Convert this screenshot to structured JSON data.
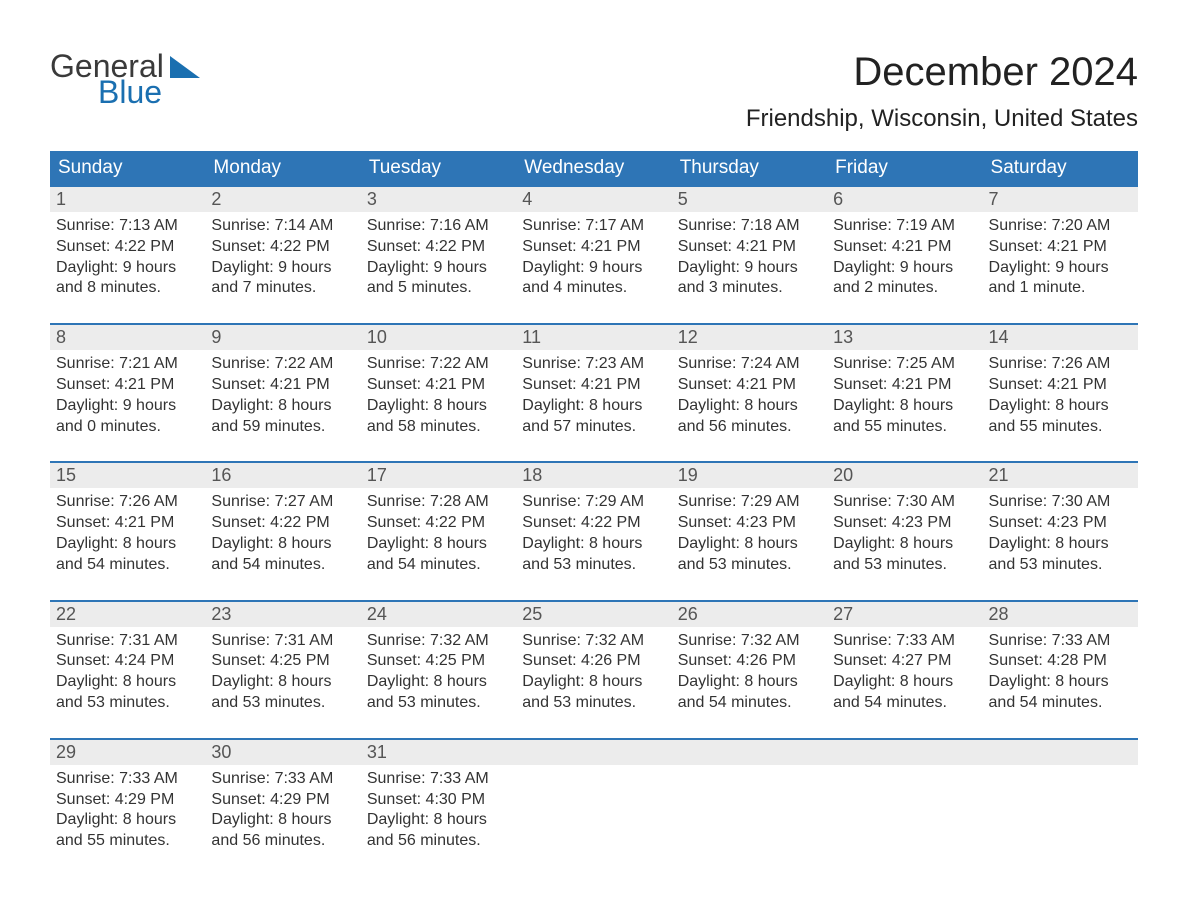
{
  "brand": {
    "word1": "General",
    "word2": "Blue",
    "triangle_color": "#1a6fb0",
    "text1_color": "#3a3a3a",
    "text2_color": "#1a6fb0"
  },
  "title": "December 2024",
  "location": "Friendship, Wisconsin, United States",
  "colors": {
    "header_bg": "#2e75b6",
    "header_text": "#ffffff",
    "week_border": "#2e75b6",
    "daynum_bg": "#ececec",
    "daynum_text": "#555555",
    "body_text": "#333333",
    "page_bg": "#ffffff"
  },
  "fonts": {
    "title_size_pt": 30,
    "location_size_pt": 18,
    "header_size_pt": 14,
    "body_size_pt": 12
  },
  "day_headers": [
    "Sunday",
    "Monday",
    "Tuesday",
    "Wednesday",
    "Thursday",
    "Friday",
    "Saturday"
  ],
  "weeks": [
    [
      {
        "n": "1",
        "sr": "Sunrise: 7:13 AM",
        "ss": "Sunset: 4:22 PM",
        "d1": "Daylight: 9 hours",
        "d2": "and 8 minutes."
      },
      {
        "n": "2",
        "sr": "Sunrise: 7:14 AM",
        "ss": "Sunset: 4:22 PM",
        "d1": "Daylight: 9 hours",
        "d2": "and 7 minutes."
      },
      {
        "n": "3",
        "sr": "Sunrise: 7:16 AM",
        "ss": "Sunset: 4:22 PM",
        "d1": "Daylight: 9 hours",
        "d2": "and 5 minutes."
      },
      {
        "n": "4",
        "sr": "Sunrise: 7:17 AM",
        "ss": "Sunset: 4:21 PM",
        "d1": "Daylight: 9 hours",
        "d2": "and 4 minutes."
      },
      {
        "n": "5",
        "sr": "Sunrise: 7:18 AM",
        "ss": "Sunset: 4:21 PM",
        "d1": "Daylight: 9 hours",
        "d2": "and 3 minutes."
      },
      {
        "n": "6",
        "sr": "Sunrise: 7:19 AM",
        "ss": "Sunset: 4:21 PM",
        "d1": "Daylight: 9 hours",
        "d2": "and 2 minutes."
      },
      {
        "n": "7",
        "sr": "Sunrise: 7:20 AM",
        "ss": "Sunset: 4:21 PM",
        "d1": "Daylight: 9 hours",
        "d2": "and 1 minute."
      }
    ],
    [
      {
        "n": "8",
        "sr": "Sunrise: 7:21 AM",
        "ss": "Sunset: 4:21 PM",
        "d1": "Daylight: 9 hours",
        "d2": "and 0 minutes."
      },
      {
        "n": "9",
        "sr": "Sunrise: 7:22 AM",
        "ss": "Sunset: 4:21 PM",
        "d1": "Daylight: 8 hours",
        "d2": "and 59 minutes."
      },
      {
        "n": "10",
        "sr": "Sunrise: 7:22 AM",
        "ss": "Sunset: 4:21 PM",
        "d1": "Daylight: 8 hours",
        "d2": "and 58 minutes."
      },
      {
        "n": "11",
        "sr": "Sunrise: 7:23 AM",
        "ss": "Sunset: 4:21 PM",
        "d1": "Daylight: 8 hours",
        "d2": "and 57 minutes."
      },
      {
        "n": "12",
        "sr": "Sunrise: 7:24 AM",
        "ss": "Sunset: 4:21 PM",
        "d1": "Daylight: 8 hours",
        "d2": "and 56 minutes."
      },
      {
        "n": "13",
        "sr": "Sunrise: 7:25 AM",
        "ss": "Sunset: 4:21 PM",
        "d1": "Daylight: 8 hours",
        "d2": "and 55 minutes."
      },
      {
        "n": "14",
        "sr": "Sunrise: 7:26 AM",
        "ss": "Sunset: 4:21 PM",
        "d1": "Daylight: 8 hours",
        "d2": "and 55 minutes."
      }
    ],
    [
      {
        "n": "15",
        "sr": "Sunrise: 7:26 AM",
        "ss": "Sunset: 4:21 PM",
        "d1": "Daylight: 8 hours",
        "d2": "and 54 minutes."
      },
      {
        "n": "16",
        "sr": "Sunrise: 7:27 AM",
        "ss": "Sunset: 4:22 PM",
        "d1": "Daylight: 8 hours",
        "d2": "and 54 minutes."
      },
      {
        "n": "17",
        "sr": "Sunrise: 7:28 AM",
        "ss": "Sunset: 4:22 PM",
        "d1": "Daylight: 8 hours",
        "d2": "and 54 minutes."
      },
      {
        "n": "18",
        "sr": "Sunrise: 7:29 AM",
        "ss": "Sunset: 4:22 PM",
        "d1": "Daylight: 8 hours",
        "d2": "and 53 minutes."
      },
      {
        "n": "19",
        "sr": "Sunrise: 7:29 AM",
        "ss": "Sunset: 4:23 PM",
        "d1": "Daylight: 8 hours",
        "d2": "and 53 minutes."
      },
      {
        "n": "20",
        "sr": "Sunrise: 7:30 AM",
        "ss": "Sunset: 4:23 PM",
        "d1": "Daylight: 8 hours",
        "d2": "and 53 minutes."
      },
      {
        "n": "21",
        "sr": "Sunrise: 7:30 AM",
        "ss": "Sunset: 4:23 PM",
        "d1": "Daylight: 8 hours",
        "d2": "and 53 minutes."
      }
    ],
    [
      {
        "n": "22",
        "sr": "Sunrise: 7:31 AM",
        "ss": "Sunset: 4:24 PM",
        "d1": "Daylight: 8 hours",
        "d2": "and 53 minutes."
      },
      {
        "n": "23",
        "sr": "Sunrise: 7:31 AM",
        "ss": "Sunset: 4:25 PM",
        "d1": "Daylight: 8 hours",
        "d2": "and 53 minutes."
      },
      {
        "n": "24",
        "sr": "Sunrise: 7:32 AM",
        "ss": "Sunset: 4:25 PM",
        "d1": "Daylight: 8 hours",
        "d2": "and 53 minutes."
      },
      {
        "n": "25",
        "sr": "Sunrise: 7:32 AM",
        "ss": "Sunset: 4:26 PM",
        "d1": "Daylight: 8 hours",
        "d2": "and 53 minutes."
      },
      {
        "n": "26",
        "sr": "Sunrise: 7:32 AM",
        "ss": "Sunset: 4:26 PM",
        "d1": "Daylight: 8 hours",
        "d2": "and 54 minutes."
      },
      {
        "n": "27",
        "sr": "Sunrise: 7:33 AM",
        "ss": "Sunset: 4:27 PM",
        "d1": "Daylight: 8 hours",
        "d2": "and 54 minutes."
      },
      {
        "n": "28",
        "sr": "Sunrise: 7:33 AM",
        "ss": "Sunset: 4:28 PM",
        "d1": "Daylight: 8 hours",
        "d2": "and 54 minutes."
      }
    ],
    [
      {
        "n": "29",
        "sr": "Sunrise: 7:33 AM",
        "ss": "Sunset: 4:29 PM",
        "d1": "Daylight: 8 hours",
        "d2": "and 55 minutes."
      },
      {
        "n": "30",
        "sr": "Sunrise: 7:33 AM",
        "ss": "Sunset: 4:29 PM",
        "d1": "Daylight: 8 hours",
        "d2": "and 56 minutes."
      },
      {
        "n": "31",
        "sr": "Sunrise: 7:33 AM",
        "ss": "Sunset: 4:30 PM",
        "d1": "Daylight: 8 hours",
        "d2": "and 56 minutes."
      },
      {
        "empty": true
      },
      {
        "empty": true
      },
      {
        "empty": true
      },
      {
        "empty": true
      }
    ]
  ]
}
